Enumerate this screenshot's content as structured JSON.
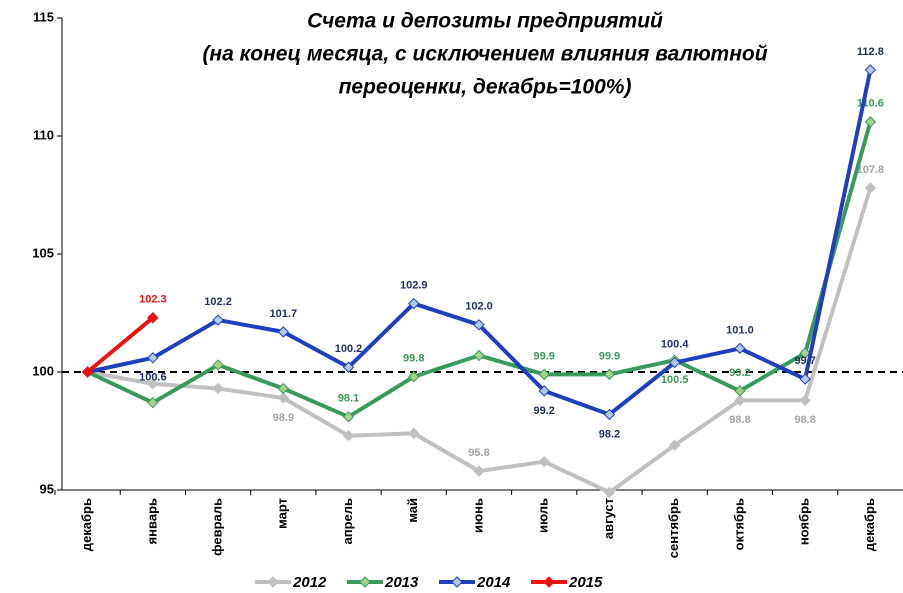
{
  "chart_data": {
    "type": "line",
    "title": [
      "Счета и депозиты предприятий",
      "(на конец месяца, с исключением влияния валютной",
      "переоценки, декабрь=100%)"
    ],
    "categories": [
      "декабрь",
      "январь",
      "февраль",
      "март",
      "апрель",
      "май",
      "июнь",
      "июль",
      "август",
      "сентябрь",
      "октябрь",
      "ноябрь",
      "декабрь"
    ],
    "series": [
      {
        "name": "2012",
        "color": "#c0c0c0",
        "values": [
          100,
          99.5,
          99.3,
          98.9,
          97.3,
          97.4,
          95.8,
          96.2,
          94.9,
          96.9,
          98.8,
          98.8,
          107.8
        ],
        "value_labels": [
          null,
          null,
          null,
          "98.9",
          null,
          null,
          "95.8",
          null,
          null,
          null,
          "98.8",
          "98.8",
          "107.8"
        ]
      },
      {
        "name": "2013",
        "color": "#3a9a5c",
        "values": [
          100,
          98.7,
          100.3,
          99.3,
          98.1,
          99.8,
          100.7,
          99.9,
          99.9,
          100.5,
          99.2,
          100.8,
          110.6
        ],
        "value_labels": [
          null,
          null,
          null,
          null,
          "98.1",
          "99.8",
          null,
          "99.9",
          "99.9",
          "100.5",
          "99.2",
          null,
          "110.6"
        ]
      },
      {
        "name": "2014",
        "color": "#1f3fbf",
        "values": [
          100,
          100.6,
          102.2,
          101.7,
          100.2,
          102.9,
          102.0,
          99.2,
          98.2,
          100.4,
          101.0,
          99.7,
          112.8
        ],
        "value_labels": [
          null,
          "100.6",
          "102.2",
          "101.7",
          "100.2",
          "102.9",
          "102.0",
          "99.2",
          "98.2",
          "100.4",
          "101.0",
          "99.7",
          "112.8"
        ]
      },
      {
        "name": "2015",
        "color": "#ee1111",
        "values": [
          100,
          102.3,
          null,
          null,
          null,
          null,
          null,
          null,
          null,
          null,
          null,
          null,
          null
        ],
        "value_labels": [
          null,
          "102.3",
          null,
          null,
          null,
          null,
          null,
          null,
          null,
          null,
          null,
          null,
          null
        ]
      }
    ],
    "label_colors": [
      "#a6a6a6",
      "#3a9a5c",
      "#1f2f5f",
      "#ee1111"
    ],
    "ylim": [
      95,
      115
    ],
    "yticks": [
      95,
      100,
      105,
      110,
      115
    ],
    "reference_line": 100,
    "legend": "bottom"
  }
}
